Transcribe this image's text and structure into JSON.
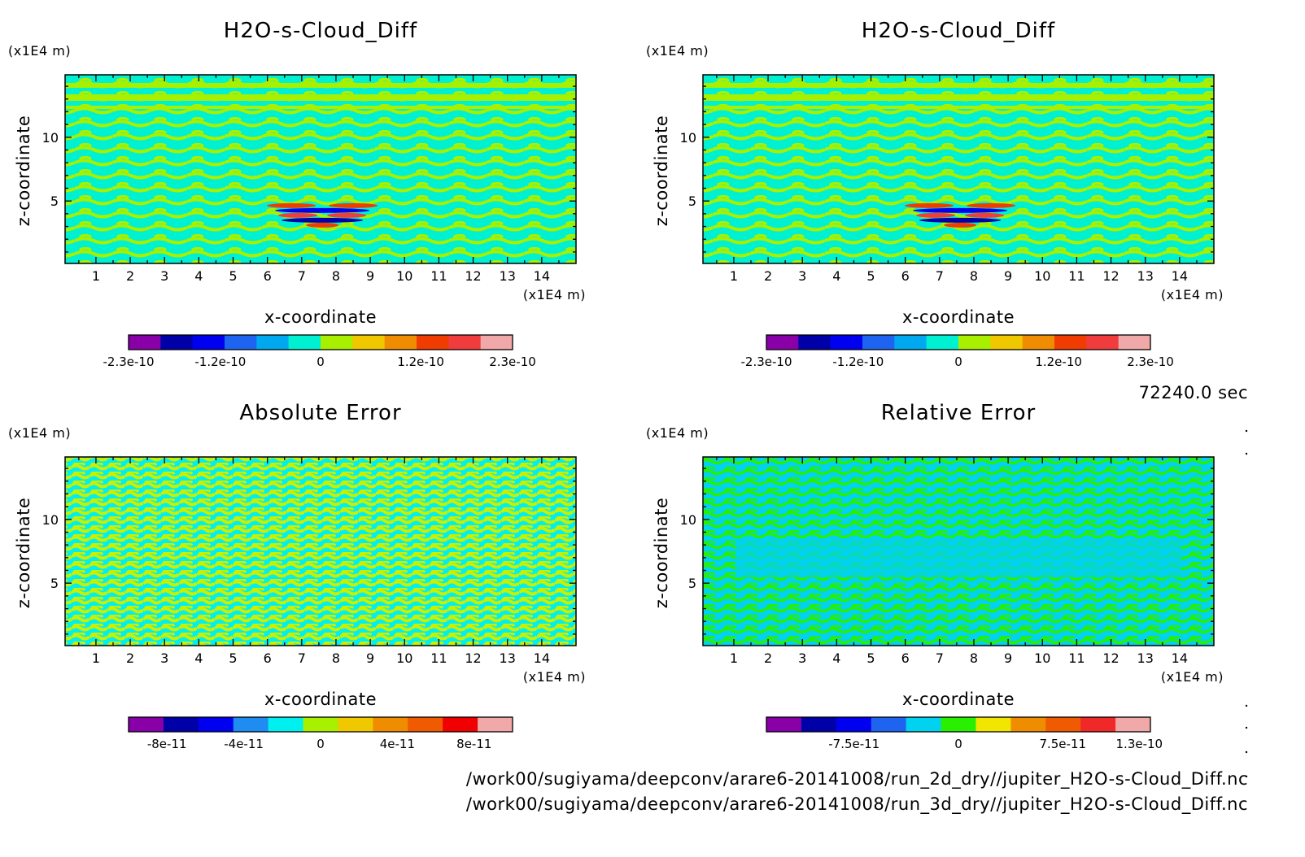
{
  "chart_data": [
    {
      "type": "heatmap",
      "title": "H2O-s-Cloud_Diff",
      "xlabel": "x-coordinate",
      "ylabel": "z-coordinate",
      "x_unit": "(x1E4 m)",
      "y_unit": "(x1E4 m)",
      "x_ticks": [
        "1",
        "2",
        "3",
        "4",
        "5",
        "6",
        "7",
        "8",
        "9",
        "10",
        "11",
        "12",
        "13",
        "14"
      ],
      "y_ticks": [
        "5",
        "10"
      ],
      "xlim": [
        0.1,
        15.0
      ],
      "ylim": [
        0.1,
        14.9
      ],
      "colors": [
        "#8a00a8",
        "#0000a8",
        "#0000f0",
        "#1e64f0",
        "#00a8f0",
        "#00f0d2",
        "#a8f000",
        "#f0c800",
        "#f08c00",
        "#f03c00",
        "#f03c3c",
        "#f0a8a8"
      ],
      "colorbar_ticks": [
        "-2.3e-10",
        "-1.2e-10",
        "0",
        "1.2e-10",
        "2.3e-10"
      ],
      "colorbar_values": [
        -2.3e-10,
        -1.2e-10,
        0,
        1.2e-10,
        2.3e-10
      ],
      "colorbar_range": [
        -2.3e-10,
        2.3e-10
      ]
    },
    {
      "type": "heatmap",
      "title": "H2O-s-Cloud_Diff",
      "xlabel": "x-coordinate",
      "ylabel": "z-coordinate",
      "x_unit": "(x1E4 m)",
      "y_unit": "(x1E4 m)",
      "x_ticks": [
        "1",
        "2",
        "3",
        "4",
        "5",
        "6",
        "7",
        "8",
        "9",
        "10",
        "11",
        "12",
        "13",
        "14"
      ],
      "y_ticks": [
        "5",
        "10"
      ],
      "xlim": [
        0.1,
        15.0
      ],
      "ylim": [
        0.1,
        14.9
      ],
      "colors": [
        "#8a00a8",
        "#0000a8",
        "#0000f0",
        "#1e64f0",
        "#00a8f0",
        "#00f0d2",
        "#a8f000",
        "#f0c800",
        "#f08c00",
        "#f03c00",
        "#f03c3c",
        "#f0a8a8"
      ],
      "colorbar_ticks": [
        "-2.3e-10",
        "-1.2e-10",
        "0",
        "1.2e-10",
        "2.3e-10"
      ],
      "colorbar_values": [
        -2.3e-10,
        -1.2e-10,
        0,
        1.2e-10,
        2.3e-10
      ],
      "colorbar_range": [
        -2.3e-10,
        2.3e-10
      ]
    },
    {
      "type": "heatmap",
      "title": "Absolute Error",
      "xlabel": "x-coordinate",
      "ylabel": "z-coordinate",
      "x_unit": "(x1E4 m)",
      "y_unit": "(x1E4 m)",
      "x_ticks": [
        "1",
        "2",
        "3",
        "4",
        "5",
        "6",
        "7",
        "8",
        "9",
        "10",
        "11",
        "12",
        "13",
        "14"
      ],
      "y_ticks": [
        "5",
        "10"
      ],
      "xlim": [
        0.1,
        15.0
      ],
      "ylim": [
        0.1,
        14.9
      ],
      "colors": [
        "#8a00a8",
        "#0000a8",
        "#0000f0",
        "#1e8cf0",
        "#00f0f0",
        "#a8f000",
        "#f0c800",
        "#f08c00",
        "#f05a00",
        "#f00000",
        "#f0a8a8"
      ],
      "colorbar_ticks": [
        "-8e-11",
        "-4e-11",
        "0",
        "4e-11",
        "8e-11"
      ],
      "colorbar_values": [
        -8e-11,
        -4e-11,
        0,
        4e-11,
        8e-11
      ],
      "colorbar_range": [
        -1e-10,
        1e-10
      ]
    },
    {
      "type": "heatmap",
      "title": "Relative Error",
      "xlabel": "x-coordinate",
      "ylabel": "z-coordinate",
      "x_unit": "(x1E4 m)",
      "y_unit": "(x1E4 m)",
      "x_ticks": [
        "1",
        "2",
        "3",
        "4",
        "5",
        "6",
        "7",
        "8",
        "9",
        "10",
        "11",
        "12",
        "13",
        "14"
      ],
      "y_ticks": [
        "5",
        "10"
      ],
      "xlim": [
        0.1,
        15.0
      ],
      "ylim": [
        0.1,
        14.9
      ],
      "colors": [
        "#8a00a8",
        "#0000a8",
        "#0000f0",
        "#1e64f0",
        "#00d2f0",
        "#28f000",
        "#f0e600",
        "#f08c00",
        "#f05a00",
        "#f02828",
        "#f0a8a8"
      ],
      "colorbar_ticks": [
        "-7.5e-11",
        "0",
        "7.5e-11",
        "1.3e-10"
      ],
      "colorbar_values": [
        -7.5e-11,
        0,
        7.5e-11,
        1.3e-10
      ],
      "colorbar_range": [
        -1.38e-10,
        1.38e-10
      ]
    }
  ],
  "time_label": "72240.0 sec",
  "file_paths": [
    "/work00/sugiyama/deepconv/arare6-20141008/run_2d_dry//jupiter_H2O-s-Cloud_Diff.nc",
    "/work00/sugiyama/deepconv/arare6-20141008/run_3d_dry//jupiter_H2O-s-Cloud_Diff.nc"
  ]
}
